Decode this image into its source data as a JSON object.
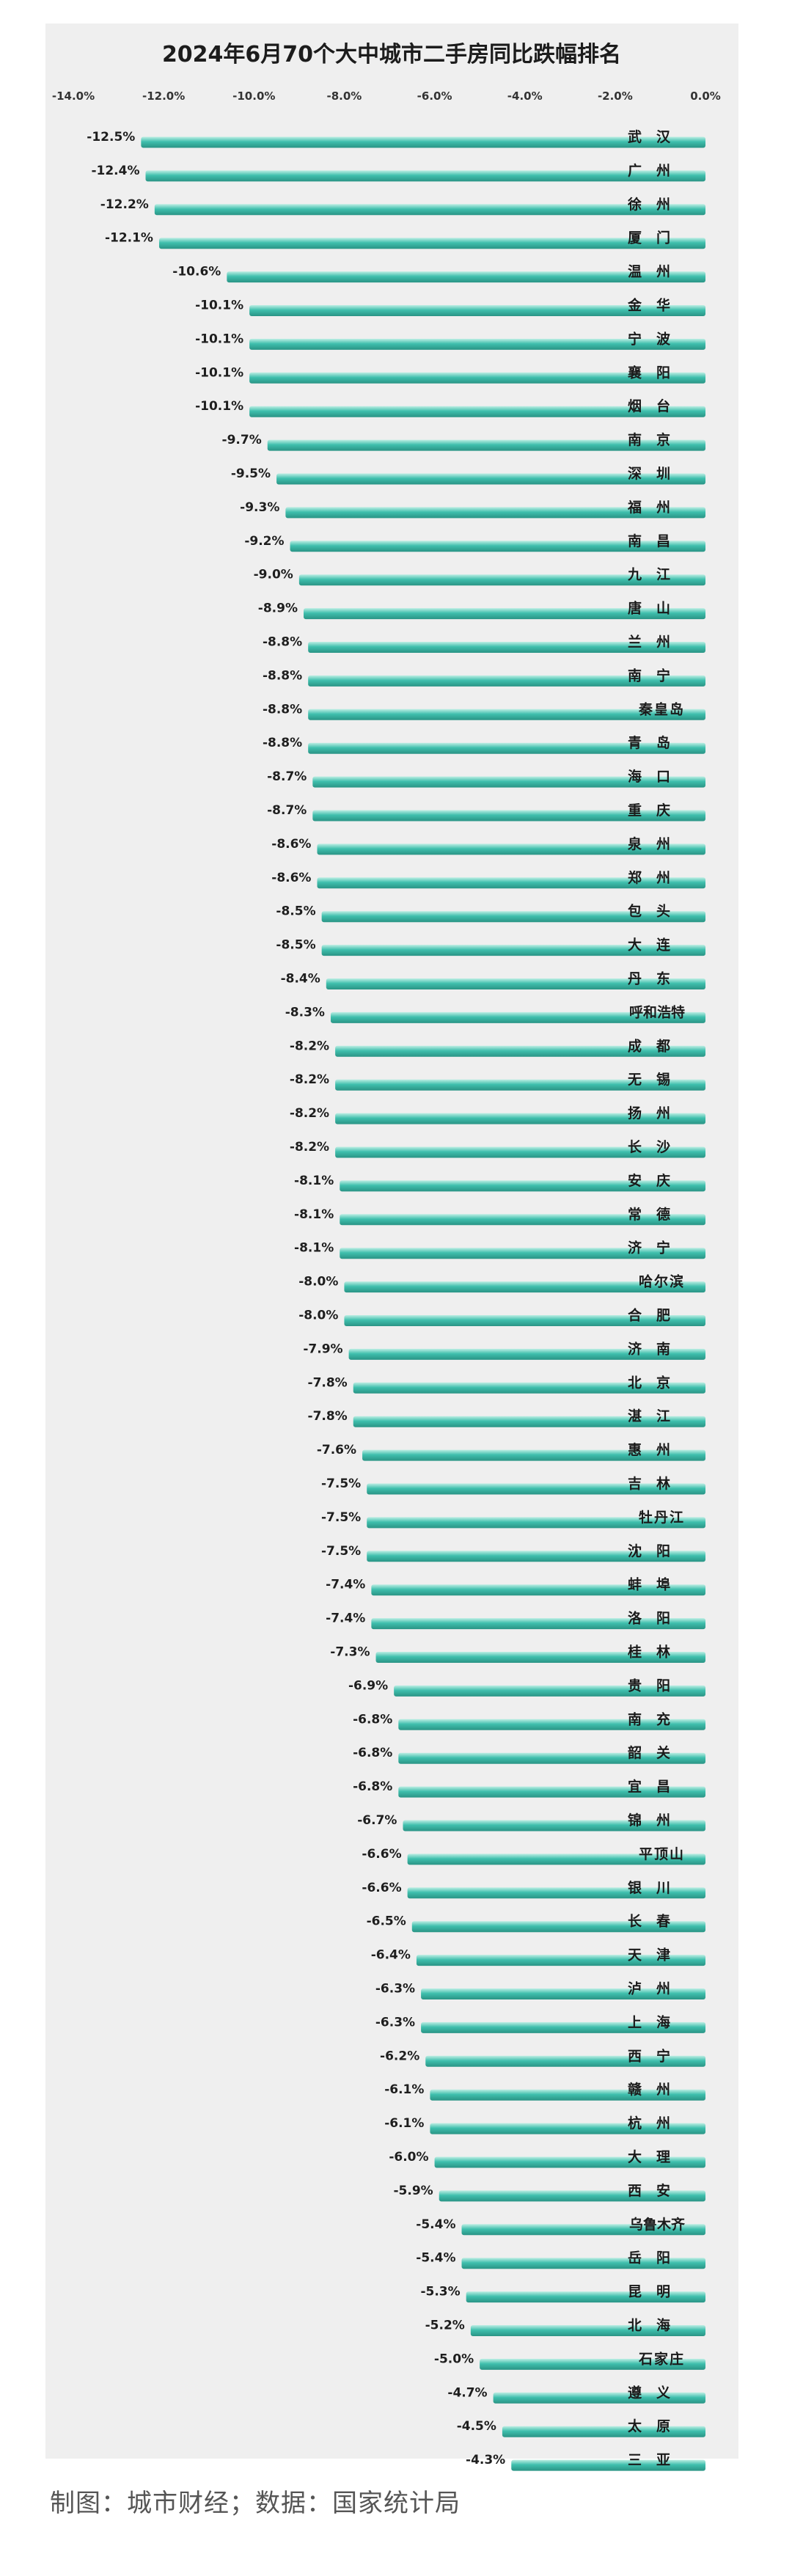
{
  "chart_data": {
    "type": "bar",
    "orientation": "horizontal",
    "title": "2024年6月70个大中城市二手房同比跌幅排名",
    "xlim": [
      -14.0,
      0.0
    ],
    "x_ticks": [
      -14.0,
      -12.0,
      -10.0,
      -8.0,
      -6.0,
      -4.0,
      -2.0,
      0.0
    ],
    "x_tick_labels": [
      "-14.0%",
      "-12.0%",
      "-10.0%",
      "-8.0%",
      "-6.0%",
      "-4.0%",
      "-2.0%",
      "0.0%"
    ],
    "axis_position": "top",
    "grid": false,
    "bar_color": "#3fbfad",
    "bar_highlight_color": "#bdeee4",
    "bar_shadow_color": "#2a9485",
    "panel_color": "#efefef",
    "categories": [
      "武汉",
      "广州",
      "徐州",
      "厦门",
      "温州",
      "金华",
      "宁波",
      "襄阳",
      "烟台",
      "南京",
      "深圳",
      "福州",
      "南昌",
      "九江",
      "唐山",
      "兰州",
      "南宁",
      "秦皇岛",
      "青岛",
      "海口",
      "重庆",
      "泉州",
      "郑州",
      "包头",
      "大连",
      "丹东",
      "呼和浩特",
      "成都",
      "无锡",
      "扬州",
      "长沙",
      "安庆",
      "常德",
      "济宁",
      "哈尔滨",
      "合肥",
      "济南",
      "北京",
      "湛江",
      "惠州",
      "吉林",
      "牡丹江",
      "沈阳",
      "蚌埠",
      "洛阳",
      "桂林",
      "贵阳",
      "南充",
      "韶关",
      "宜昌",
      "锦州",
      "平顶山",
      "银川",
      "长春",
      "天津",
      "泸州",
      "上海",
      "西宁",
      "赣州",
      "杭州",
      "大理",
      "西安",
      "乌鲁木齐",
      "岳阳",
      "昆明",
      "北海",
      "石家庄",
      "遵义",
      "太原",
      "三亚"
    ],
    "values": [
      -12.5,
      -12.4,
      -12.2,
      -12.1,
      -10.6,
      -10.1,
      -10.1,
      -10.1,
      -10.1,
      -9.7,
      -9.5,
      -9.3,
      -9.2,
      -9.0,
      -8.9,
      -8.8,
      -8.8,
      -8.8,
      -8.8,
      -8.7,
      -8.7,
      -8.6,
      -8.6,
      -8.5,
      -8.5,
      -8.4,
      -8.3,
      -8.2,
      -8.2,
      -8.2,
      -8.2,
      -8.1,
      -8.1,
      -8.1,
      -8.0,
      -8.0,
      -7.9,
      -7.8,
      -7.8,
      -7.6,
      -7.5,
      -7.5,
      -7.5,
      -7.4,
      -7.4,
      -7.3,
      -6.9,
      -6.8,
      -6.8,
      -6.8,
      -6.7,
      -6.6,
      -6.6,
      -6.5,
      -6.4,
      -6.3,
      -6.3,
      -6.2,
      -6.1,
      -6.1,
      -6.0,
      -5.9,
      -5.4,
      -5.4,
      -5.3,
      -5.2,
      -5.0,
      -4.7,
      -4.5,
      -4.3
    ],
    "value_labels": [
      "-12.5%",
      "-12.4%",
      "-12.2%",
      "-12.1%",
      "-10.6%",
      "-10.1%",
      "-10.1%",
      "-10.1%",
      "-10.1%",
      "-9.7%",
      "-9.5%",
      "-9.3%",
      "-9.2%",
      "-9.0%",
      "-8.9%",
      "-8.8%",
      "-8.8%",
      "-8.8%",
      "-8.8%",
      "-8.7%",
      "-8.7%",
      "-8.6%",
      "-8.6%",
      "-8.5%",
      "-8.5%",
      "-8.4%",
      "-8.3%",
      "-8.2%",
      "-8.2%",
      "-8.2%",
      "-8.2%",
      "-8.1%",
      "-8.1%",
      "-8.1%",
      "-8.0%",
      "-8.0%",
      "-7.9%",
      "-7.8%",
      "-7.8%",
      "-7.6%",
      "-7.5%",
      "-7.5%",
      "-7.5%",
      "-7.4%",
      "-7.4%",
      "-7.3%",
      "-6.9%",
      "-6.8%",
      "-6.8%",
      "-6.8%",
      "-6.7%",
      "-6.6%",
      "-6.6%",
      "-6.5%",
      "-6.4%",
      "-6.3%",
      "-6.3%",
      "-6.2%",
      "-6.1%",
      "-6.1%",
      "-6.0%",
      "-5.9%",
      "-5.4%",
      "-5.4%",
      "-5.3%",
      "-5.2%",
      "-5.0%",
      "-4.7%",
      "-4.5%",
      "-4.3%"
    ]
  },
  "footer": {
    "credit": "制图：城市财经；数据：国家统计局"
  }
}
